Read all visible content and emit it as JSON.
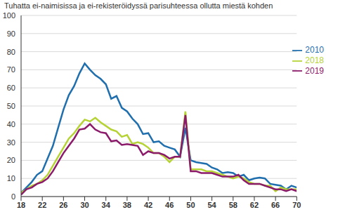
{
  "chart_data": {
    "type": "line",
    "title": "Tuhatta ei-naimisissa ja ei-rekisteröidyssä parisuhteessa ollutta miestä kohden",
    "x": [
      18,
      19,
      20,
      21,
      22,
      23,
      24,
      25,
      26,
      27,
      28,
      29,
      30,
      31,
      32,
      33,
      34,
      35,
      36,
      37,
      38,
      39,
      40,
      41,
      42,
      43,
      44,
      45,
      46,
      47,
      48,
      49,
      50,
      51,
      52,
      53,
      54,
      55,
      56,
      57,
      58,
      59,
      60,
      61,
      62,
      63,
      64,
      65,
      66,
      67,
      68,
      69,
      70
    ],
    "series": [
      {
        "name": "2010",
        "color": "#1f6fae",
        "values": [
          2,
          5,
          8,
          12,
          14,
          21,
          28,
          38,
          48,
          56,
          61,
          68,
          73.5,
          70,
          67,
          65,
          62,
          54,
          55.5,
          49,
          47,
          43,
          40,
          34.5,
          35,
          30,
          30.5,
          28,
          27,
          26,
          22,
          38,
          20,
          19,
          18.5,
          18,
          16,
          15,
          13,
          13.5,
          13,
          11,
          12,
          9,
          10,
          10.5,
          10,
          7,
          6.5,
          6,
          4,
          6,
          5
        ]
      },
      {
        "name": "2018",
        "color": "#b5d334",
        "values": [
          2,
          4,
          6,
          7,
          9,
          12,
          17,
          22,
          27,
          32,
          35,
          39,
          42.5,
          41.5,
          43.5,
          41,
          39,
          37,
          36,
          33,
          34,
          29,
          30,
          29,
          27,
          24,
          24,
          22,
          19,
          22,
          22,
          47,
          15,
          15,
          15,
          14,
          14,
          13,
          12,
          11,
          10,
          11,
          10,
          8,
          7,
          7,
          6,
          6,
          3,
          5,
          4,
          4,
          4
        ]
      },
      {
        "name": "2019",
        "color": "#8c1a6a",
        "values": [
          1,
          4,
          5,
          7,
          8,
          10,
          14,
          19,
          24,
          28,
          32,
          37,
          37.5,
          40,
          37,
          35.5,
          35,
          30.5,
          31,
          28.5,
          29,
          28.5,
          28,
          23,
          25,
          24,
          24,
          23,
          21,
          22,
          22,
          45,
          14,
          14,
          13,
          13,
          13,
          12,
          11,
          11,
          11,
          12,
          9,
          7,
          7,
          7,
          6,
          5,
          4,
          4,
          3,
          4,
          3
        ]
      }
    ],
    "xlim": [
      18,
      70
    ],
    "xticks": [
      18,
      22,
      26,
      30,
      34,
      38,
      42,
      46,
      50,
      54,
      58,
      62,
      66,
      70
    ],
    "ylim": [
      0,
      100
    ],
    "yticks": [
      0,
      10,
      20,
      30,
      40,
      50,
      60,
      70,
      80,
      90,
      100
    ],
    "grid": true,
    "legend": "right"
  }
}
